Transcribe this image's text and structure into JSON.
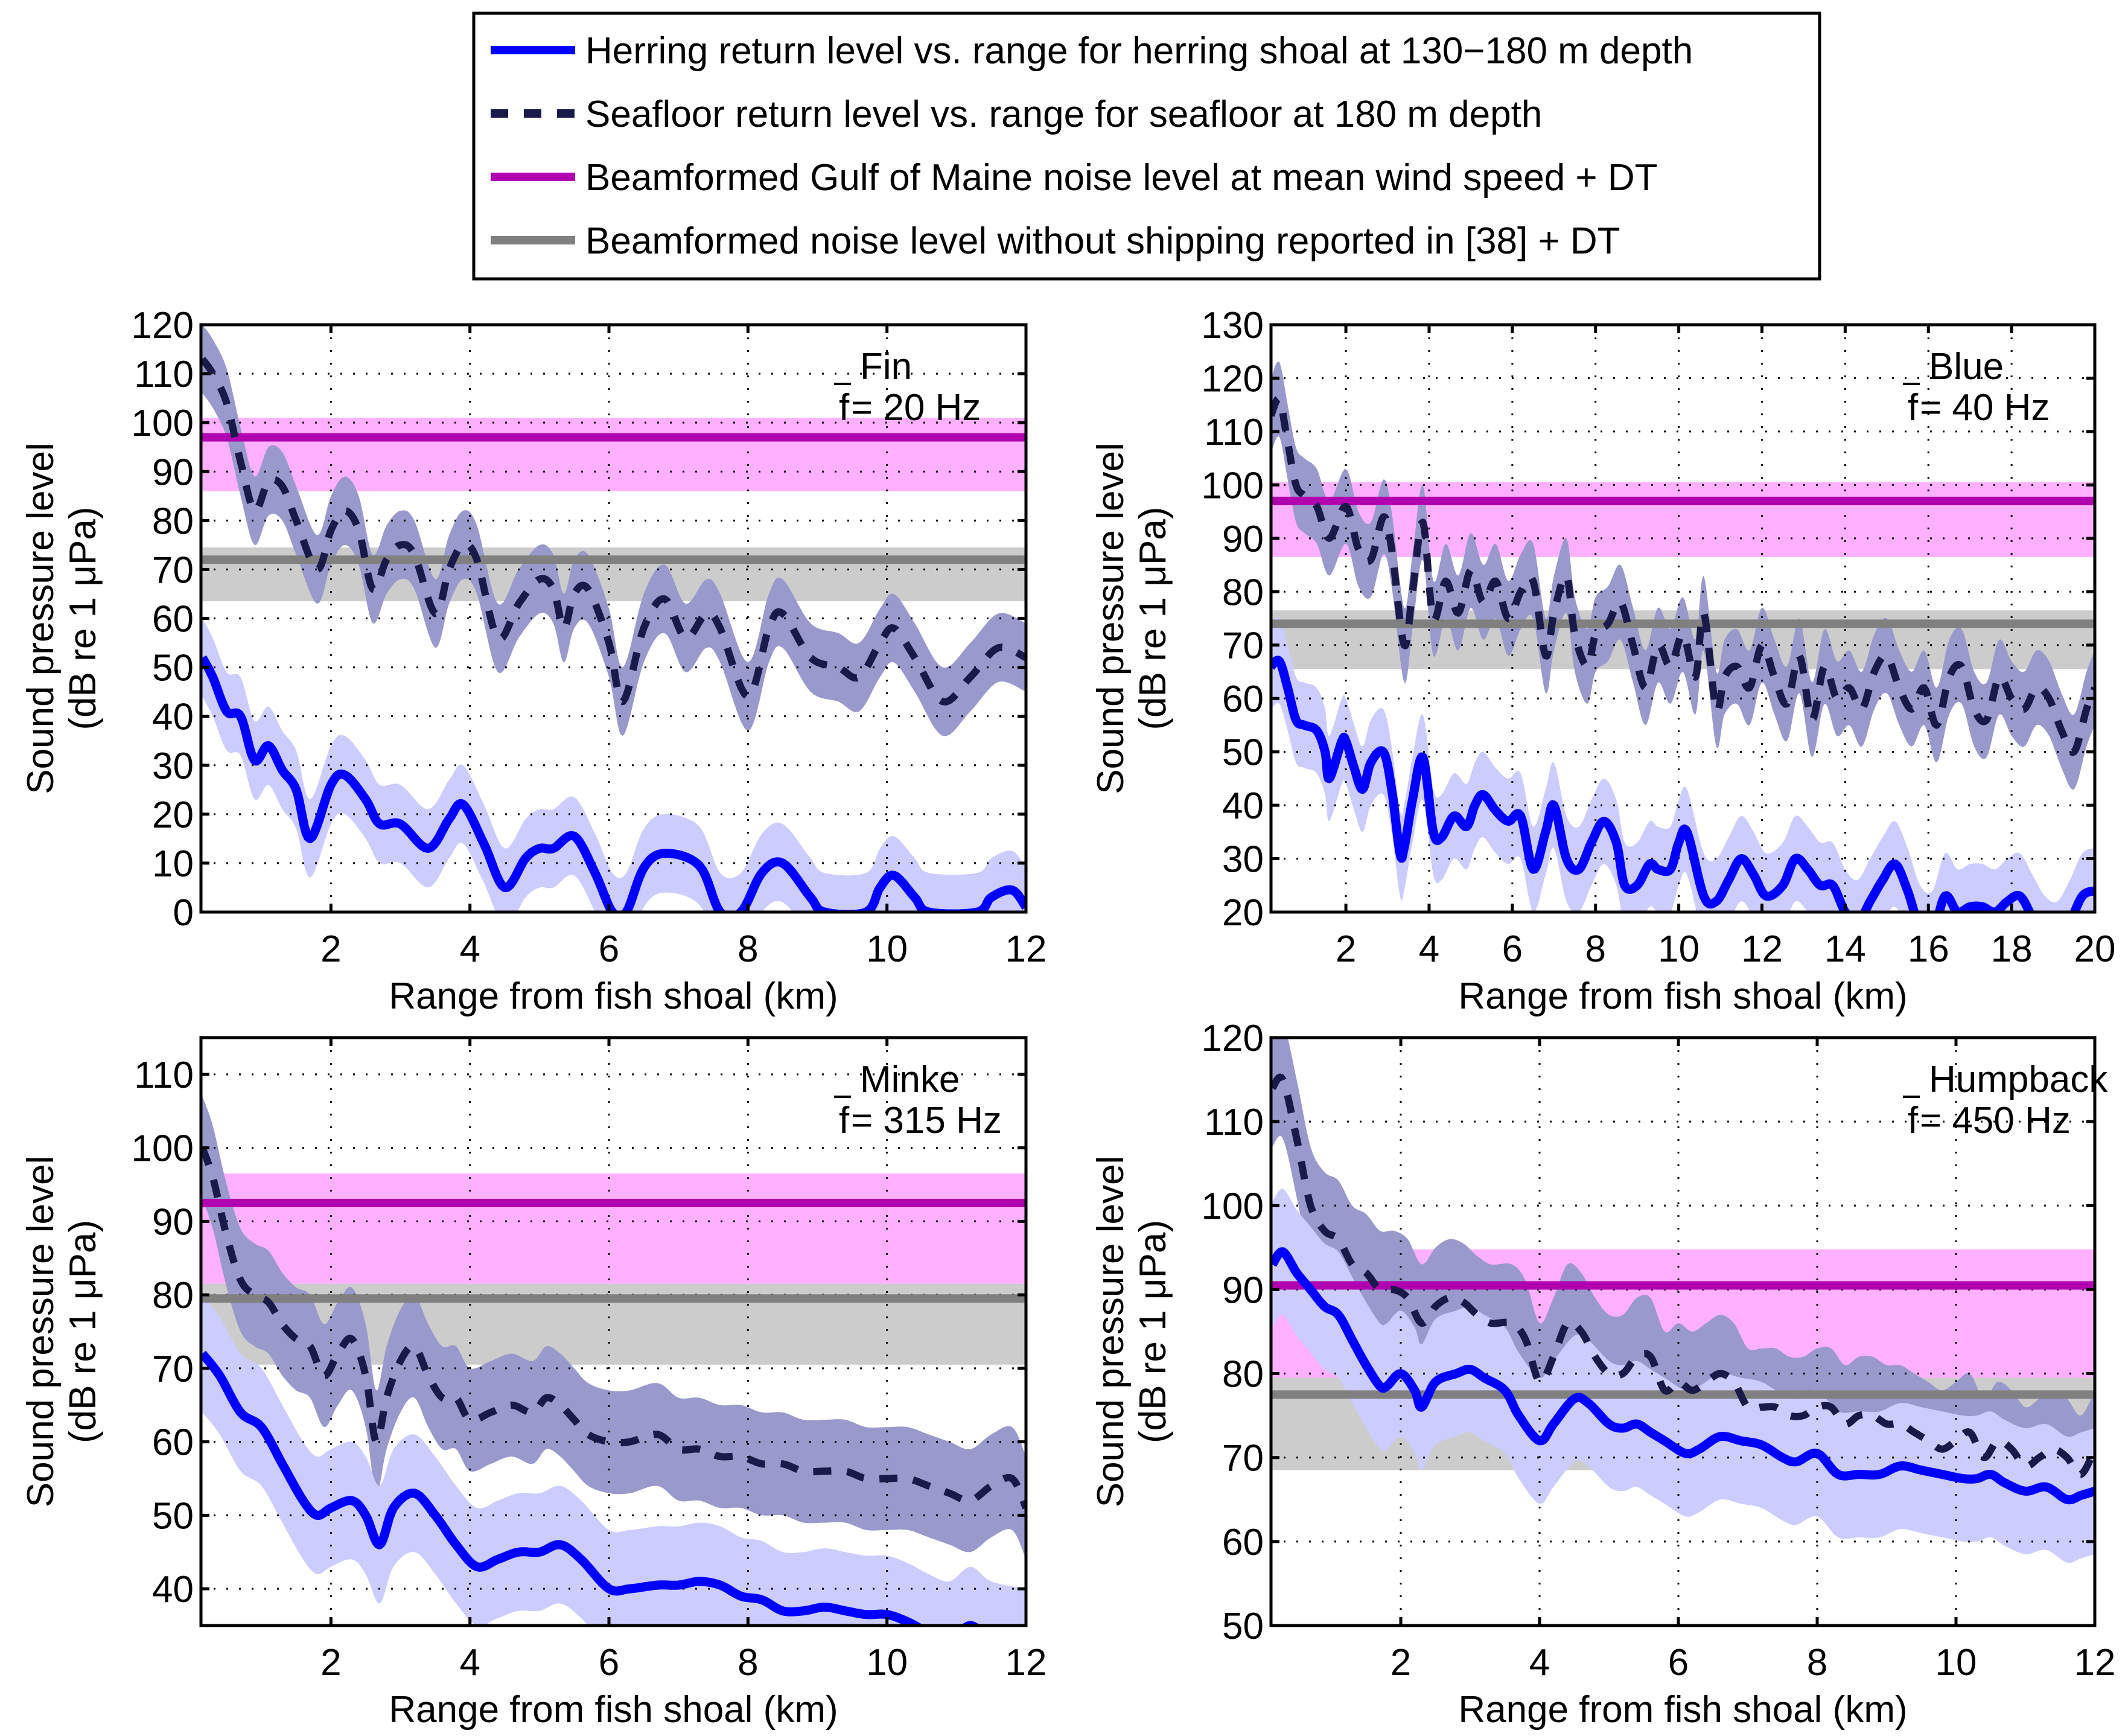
{
  "legend": {
    "entries": [
      {
        "label": "Herring return level vs. range for herring shoal at 130−180 m depth",
        "color": "#0000ff",
        "style": "solid"
      },
      {
        "label": "Seafloor return level vs. range for seafloor at 180 m depth",
        "color": "#1a1a4a",
        "style": "dashed"
      },
      {
        "label": "Beamformed Gulf of Maine noise level at mean wind speed + DT",
        "color": "#b000b0",
        "style": "solid"
      },
      {
        "label": "Beamformed noise level without shipping reported in [38] + DT",
        "color": "#808080",
        "style": "solid"
      }
    ]
  },
  "colors": {
    "herring_line": "#0000ff",
    "herring_band": "#ccccff",
    "seafloor_line": "#1a1a4a",
    "seafloor_band": "#9999cc",
    "maine_line": "#b000b0",
    "maine_band": "#ffb0ff",
    "noship_line": "#808080",
    "noship_band": "#cccccc"
  },
  "chart_data": [
    {
      "type": "line",
      "panel": "top-left",
      "annotation": {
        "species": "Fin",
        "freq_label": "f = 20 Hz",
        "freq_symbol": "f",
        "freq_text": " = 20 Hz"
      },
      "xlabel": "Range from fish shoal (km)",
      "ylabel": [
        "Sound pressure level",
        "(dB re 1 μPa)"
      ],
      "xlim": [
        0.13,
        12
      ],
      "ylim": [
        0,
        120
      ],
      "xticks": [
        2,
        4,
        6,
        8,
        10,
        12
      ],
      "yticks": [
        0,
        10,
        20,
        30,
        40,
        50,
        60,
        70,
        80,
        90,
        100,
        110,
        120
      ],
      "grid": true,
      "maine_noise": {
        "level": 97,
        "band": [
          86,
          101
        ]
      },
      "noship_noise": {
        "level": 72,
        "band": [
          63.5,
          74.5
        ]
      },
      "seafloor": {
        "x": [
          0.15,
          0.3,
          0.5,
          0.7,
          0.9,
          1.1,
          1.3,
          1.5,
          1.8,
          2.0,
          2.2,
          2.4,
          2.6,
          2.8,
          3.0,
          3.2,
          3.5,
          3.7,
          3.9,
          4.1,
          4.4,
          4.7,
          5.0,
          5.2,
          5.35,
          5.5,
          5.7,
          6.0,
          6.2,
          6.5,
          6.8,
          7.1,
          7.4,
          7.6,
          8.0,
          8.3,
          8.5,
          8.9,
          9.3,
          9.6,
          9.9,
          10.1,
          10.4,
          10.8,
          11.2,
          11.6,
          12.0
        ],
        "y": [
          113,
          110,
          104,
          92,
          82,
          88,
          87,
          80,
          70,
          78,
          82,
          78,
          66,
          72,
          75,
          73,
          61,
          70,
          75,
          72,
          56,
          63,
          68,
          66,
          58,
          65,
          66,
          55,
          43,
          58,
          64,
          56,
          61,
          58,
          44,
          58,
          61,
          52,
          50,
          48,
          55,
          58,
          52,
          43,
          48,
          54,
          52
        ],
        "band_halfwidth": 7
      },
      "herring": {
        "x": [
          0.15,
          0.3,
          0.5,
          0.7,
          0.9,
          1.1,
          1.3,
          1.5,
          1.7,
          2.0,
          2.2,
          2.5,
          2.7,
          3.0,
          3.4,
          3.7,
          3.9,
          4.2,
          4.5,
          4.8,
          5.0,
          5.2,
          5.5,
          5.8,
          6.05,
          6.25,
          6.5,
          6.8,
          7.3,
          7.6,
          7.9,
          8.2,
          8.5,
          8.9,
          9.1,
          9.7,
          9.9,
          10.1,
          10.4,
          10.6,
          11.3,
          11.5,
          11.8,
          12.0
        ],
        "y": [
          52,
          48,
          41,
          40,
          31,
          34,
          29,
          25,
          15,
          26,
          28,
          23,
          18,
          18,
          13,
          19,
          22,
          14,
          5,
          11,
          13,
          13,
          15.5,
          8,
          0,
          0,
          9,
          12,
          9.5,
          0,
          0,
          8,
          10,
          3,
          0,
          0,
          5,
          7.5,
          3,
          0,
          0,
          3,
          4.5,
          1
        ],
        "band_halfwidth": 8
      }
    },
    {
      "type": "line",
      "panel": "top-right",
      "annotation": {
        "species": "Blue",
        "freq_label": "f = 40 Hz",
        "freq_symbol": "f",
        "freq_text": " = 40 Hz"
      },
      "xlabel": "Range from fish shoal (km)",
      "ylabel": [
        "Sound pressure level",
        "(dB re 1 μPa)"
      ],
      "xlim": [
        0.2,
        20
      ],
      "ylim": [
        20,
        130
      ],
      "xticks": [
        2,
        4,
        6,
        8,
        10,
        12,
        14,
        16,
        18,
        20
      ],
      "yticks": [
        20,
        30,
        40,
        50,
        60,
        70,
        80,
        90,
        100,
        110,
        120,
        130
      ],
      "grid": true,
      "maine_noise": {
        "level": 97,
        "band": [
          86.5,
          100.5
        ]
      },
      "noship_noise": {
        "level": 74,
        "band": [
          65.5,
          76.5
        ]
      },
      "seafloor": {
        "x": [
          0.2,
          0.4,
          0.6,
          0.8,
          1.0,
          1.3,
          1.6,
          2.0,
          2.3,
          2.6,
          2.9,
          3.1,
          3.4,
          3.6,
          3.85,
          4.1,
          4.4,
          4.7,
          5.0,
          5.3,
          5.6,
          5.9,
          6.2,
          6.5,
          6.8,
          7.0,
          7.3,
          7.5,
          7.8,
          8.0,
          8.3,
          8.6,
          8.9,
          9.2,
          9.5,
          9.8,
          10.1,
          10.4,
          10.6,
          10.9,
          11.1,
          11.4,
          11.7,
          12.0,
          12.3,
          12.6,
          12.9,
          13.2,
          13.5,
          13.8,
          14.1,
          14.4,
          14.7,
          15.0,
          15.3,
          15.6,
          15.9,
          16.2,
          16.5,
          16.8,
          17.1,
          17.4,
          17.7,
          18.0,
          18.3,
          18.6,
          18.9,
          19.2,
          19.5,
          19.8,
          20.0
        ],
        "y": [
          113,
          116,
          108,
          100,
          98,
          96,
          90,
          96,
          88,
          86,
          94,
          88,
          70,
          80,
          93,
          75,
          82,
          76,
          84,
          78,
          82,
          75,
          80,
          82,
          68,
          76,
          83,
          72,
          66,
          72,
          74,
          78,
          70,
          62,
          70,
          66,
          72,
          64,
          76,
          58,
          64,
          66,
          62,
          70,
          64,
          59,
          68,
          56,
          66,
          60,
          62,
          58,
          65,
          68,
          62,
          58,
          62,
          55,
          64,
          66,
          58,
          56,
          64,
          60,
          58,
          62,
          60,
          54,
          50,
          58,
          62
        ],
        "band_halfwidth": 7
      },
      "herring": {
        "x": [
          0.2,
          0.4,
          0.6,
          0.8,
          1.0,
          1.3,
          1.5,
          1.6,
          1.9,
          2.0,
          2.2,
          2.4,
          2.6,
          2.9,
          3.1,
          3.3,
          3.4,
          3.6,
          3.85,
          4.1,
          4.3,
          4.6,
          4.9,
          5.1,
          5.3,
          5.6,
          5.9,
          6.2,
          6.5,
          6.8,
          7.0,
          7.3,
          7.6,
          7.9,
          8.2,
          8.5,
          8.7,
          9.0,
          9.3,
          9.5,
          9.8,
          10.0,
          10.2,
          10.6,
          10.9,
          11.2,
          11.5,
          11.8,
          12.1,
          12.5,
          12.8,
          13.1,
          13.4,
          13.7,
          14.0,
          14.3,
          14.6,
          14.9,
          15.2,
          15.5,
          15.8,
          16.1,
          16.4,
          16.7,
          17.0,
          17.3,
          17.6,
          17.9,
          18.2,
          18.5,
          18.8,
          19.1,
          19.4,
          19.7,
          20.0
        ],
        "y": [
          66,
          67,
          62,
          56,
          55,
          54,
          50,
          45,
          52,
          52,
          47,
          43,
          48,
          50,
          43,
          31,
          32,
          41,
          49,
          35,
          34,
          38,
          36,
          40,
          42,
          39,
          37,
          38,
          28,
          35,
          40,
          30,
          28,
          33,
          37,
          33,
          25,
          25,
          29,
          28,
          28,
          33,
          35,
          23,
          22,
          26,
          30,
          27,
          23,
          25,
          30,
          28,
          25,
          25,
          20,
          18,
          22,
          26,
          29,
          24,
          17,
          16,
          23,
          20,
          21,
          21,
          20,
          22,
          23,
          19,
          15,
          14,
          18,
          23,
          24
        ],
        "band_halfwidth": 8
      }
    },
    {
      "type": "line",
      "panel": "bottom-left",
      "annotation": {
        "species": "Minke",
        "freq_label": "f = 315 Hz",
        "freq_symbol": "f",
        "freq_text": " = 315 Hz"
      },
      "xlabel": "Range from fish shoal (km)",
      "ylabel": [
        "Sound pressure level",
        "(dB re 1 μPa)"
      ],
      "xlim": [
        0.13,
        12
      ],
      "ylim": [
        35,
        115
      ],
      "xticks": [
        2,
        4,
        6,
        8,
        10,
        12
      ],
      "yticks": [
        40,
        50,
        60,
        70,
        80,
        90,
        100,
        110
      ],
      "grid": true,
      "maine_noise": {
        "level": 92.5,
        "band": [
          81.5,
          96.5
        ]
      },
      "noship_noise": {
        "level": 79.5,
        "band": [
          70.5,
          81.5
        ]
      },
      "seafloor": {
        "x": [
          0.15,
          0.3,
          0.5,
          0.7,
          0.9,
          1.1,
          1.3,
          1.5,
          1.7,
          1.9,
          2.1,
          2.3,
          2.5,
          2.65,
          2.8,
          3.0,
          3.2,
          3.4,
          3.6,
          3.8,
          4.0,
          4.3,
          4.6,
          4.9,
          5.1,
          5.3,
          5.5,
          5.7,
          6.0,
          6.3,
          6.7,
          7.0,
          7.3,
          7.6,
          7.9,
          8.2,
          8.5,
          8.8,
          9.1,
          9.4,
          9.7,
          10.0,
          10.3,
          10.6,
          10.9,
          11.2,
          11.5,
          11.8,
          12.0
        ],
        "y": [
          100,
          96,
          88,
          82,
          80,
          79,
          76,
          74,
          73,
          69,
          72,
          74,
          69,
          60,
          66,
          71,
          73,
          69,
          66,
          66,
          63,
          64,
          65,
          64,
          66,
          65,
          63,
          61,
          60,
          60,
          61,
          59,
          59,
          58,
          58,
          57,
          57,
          56,
          56,
          56,
          55,
          55,
          55,
          54,
          53,
          52,
          54,
          55,
          51
        ],
        "band_halfwidth": 7
      },
      "herring": {
        "x": [
          0.15,
          0.4,
          0.7,
          1.0,
          1.3,
          1.6,
          1.8,
          2.0,
          2.3,
          2.5,
          2.7,
          2.9,
          3.2,
          3.5,
          3.8,
          4.1,
          4.4,
          4.7,
          5.0,
          5.3,
          5.6,
          6.0,
          6.3,
          6.7,
          7.0,
          7.3,
          7.6,
          7.9,
          8.2,
          8.5,
          8.8,
          9.1,
          9.4,
          9.7,
          10.0,
          10.3,
          10.6,
          10.9,
          11.2,
          11.5,
          12.0
        ],
        "y": [
          72,
          69,
          64,
          62,
          57,
          52,
          50,
          51,
          52,
          50,
          46,
          51,
          53,
          50,
          46,
          43,
          44,
          45,
          45,
          46,
          44,
          40,
          40,
          40.5,
          40.5,
          41,
          40.5,
          39,
          38.5,
          37,
          37,
          37.5,
          37,
          36.5,
          36.5,
          35.5,
          34,
          33,
          35,
          33,
          32
        ],
        "band_halfwidth": 8
      }
    },
    {
      "type": "line",
      "panel": "bottom-right",
      "annotation": {
        "species": "Humpback",
        "freq_label": "f = 450 Hz",
        "freq_symbol": "f",
        "freq_text": " = 450 Hz"
      },
      "xlabel": "Range from fish shoal (km)",
      "ylabel": [
        "Sound pressure level",
        "(dB re 1 μPa)"
      ],
      "xlim": [
        0.13,
        12
      ],
      "ylim": [
        50,
        120
      ],
      "xticks": [
        2,
        4,
        6,
        8,
        10,
        12
      ],
      "yticks": [
        50,
        60,
        70,
        80,
        90,
        100,
        110,
        120
      ],
      "grid": true,
      "maine_noise": {
        "level": 90.5,
        "band": [
          79.5,
          94.8
        ]
      },
      "noship_noise": {
        "level": 77.5,
        "band": [
          68.5,
          79.5
        ]
      },
      "seafloor": {
        "x": [
          0.15,
          0.3,
          0.5,
          0.7,
          0.9,
          1.1,
          1.3,
          1.5,
          1.7,
          1.9,
          2.1,
          2.3,
          2.5,
          2.7,
          2.9,
          3.1,
          3.3,
          3.6,
          3.8,
          4.0,
          4.2,
          4.4,
          4.6,
          4.8,
          5.0,
          5.2,
          5.4,
          5.6,
          5.8,
          6.0,
          6.2,
          6.4,
          6.6,
          6.8,
          7.0,
          7.2,
          7.4,
          7.6,
          7.8,
          8.0,
          8.2,
          8.4,
          8.6,
          8.8,
          9.0,
          9.2,
          9.4,
          9.6,
          9.8,
          10.0,
          10.2,
          10.4,
          10.6,
          10.8,
          11.0,
          11.2,
          11.4,
          11.6,
          11.8,
          12.0
        ],
        "y": [
          114,
          115,
          108,
          100,
          97,
          96,
          93,
          92,
          90,
          90,
          89,
          86,
          88,
          89,
          88.5,
          87,
          86,
          86,
          84,
          79,
          82,
          86,
          85,
          82,
          80,
          80,
          82,
          82,
          78,
          79,
          78,
          79,
          80,
          79,
          76,
          76,
          76,
          75,
          75,
          76,
          76,
          74,
          75,
          75,
          74,
          74,
          73,
          72,
          71,
          72,
          73,
          70,
          72,
          71,
          69,
          70,
          71,
          70,
          68,
          71
        ],
        "band_halfwidth": 7
      },
      "herring": {
        "x": [
          0.15,
          0.3,
          0.5,
          0.7,
          0.9,
          1.1,
          1.3,
          1.5,
          1.7,
          1.8,
          2.0,
          2.2,
          2.3,
          2.5,
          2.8,
          3.0,
          3.2,
          3.5,
          3.7,
          4.0,
          4.2,
          4.5,
          4.7,
          5.0,
          5.2,
          5.4,
          5.6,
          5.8,
          6.1,
          6.3,
          6.6,
          6.9,
          7.2,
          7.5,
          7.7,
          8.0,
          8.3,
          8.6,
          8.9,
          9.2,
          9.5,
          9.8,
          10.1,
          10.3,
          10.5,
          10.7,
          11.0,
          11.3,
          11.6,
          11.8,
          12.0
        ],
        "y": [
          93,
          94.5,
          92,
          90,
          88,
          87,
          84,
          81,
          78.5,
          78.5,
          80,
          78,
          76,
          79,
          80,
          80.5,
          79.5,
          78,
          75,
          72,
          74,
          77,
          76.5,
          74,
          73.5,
          74,
          73,
          72,
          70.5,
          71,
          72.5,
          72,
          71.5,
          70,
          69.5,
          70.5,
          68,
          68,
          68,
          69,
          68.5,
          68,
          67.5,
          67.5,
          68,
          67,
          66,
          66.5,
          65,
          65.5,
          66
        ],
        "band_halfwidth": 7.5
      }
    }
  ]
}
